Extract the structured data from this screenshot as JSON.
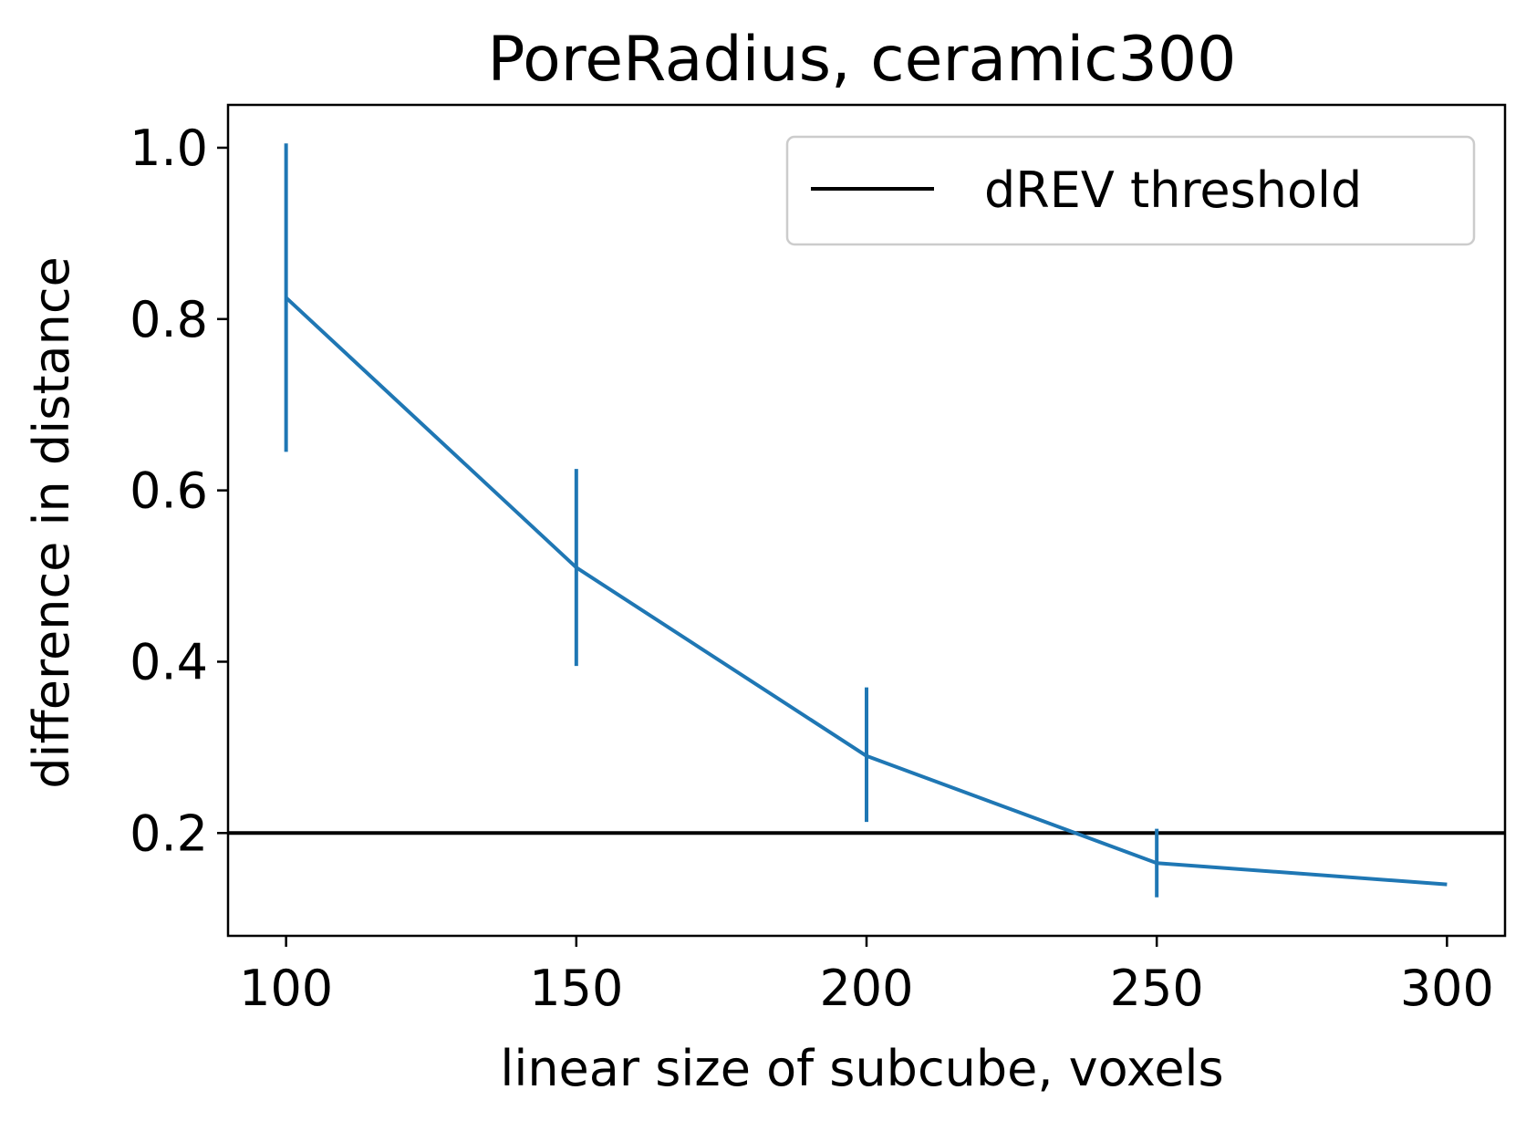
{
  "chart_data": {
    "type": "line",
    "title": "PoreRadius, ceramic300",
    "xlabel": "linear size of subcube, voxels",
    "ylabel": "difference in distance",
    "x": [
      100,
      150,
      200,
      250,
      300
    ],
    "series": [
      {
        "name": "",
        "color": "#1f77b4",
        "values": [
          0.825,
          0.51,
          0.29,
          0.165,
          0.14
        ],
        "error_low": [
          0.645,
          0.395,
          0.213,
          0.125,
          null
        ],
        "error_high": [
          1.005,
          0.625,
          0.37,
          0.205,
          null
        ]
      }
    ],
    "threshold": {
      "name": "dREV threshold",
      "value": 0.2,
      "color": "#000000"
    },
    "xlim": [
      90,
      310
    ],
    "ylim": [
      0.08,
      1.05
    ],
    "xticks": [
      100,
      150,
      200,
      250,
      300
    ],
    "yticks": [
      0.2,
      0.4,
      0.6,
      0.8,
      1.0
    ],
    "xtick_labels": [
      "100",
      "150",
      "200",
      "250",
      "300"
    ],
    "ytick_labels": [
      "0.2",
      "0.4",
      "0.6",
      "0.8",
      "1.0"
    ],
    "grid": false,
    "legend_position": "top-right"
  }
}
